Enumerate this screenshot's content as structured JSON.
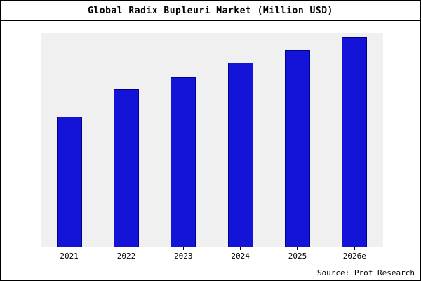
{
  "chart_data": {
    "type": "bar",
    "title": "Global Radix Bupleuri Market (Million USD)",
    "categories": [
      "2021",
      "2022",
      "2023",
      "2024",
      "2025",
      "2026e"
    ],
    "values": [
      62,
      75,
      81,
      88,
      94,
      100
    ],
    "ylim": [
      0,
      102
    ],
    "xlabel": "",
    "ylabel": "",
    "grid": false,
    "legend": false,
    "bar_color": "#1414d9",
    "bar_edge_color": "#00008b",
    "plot_background": "#f0f0f0",
    "source_note": "Source: Prof Research"
  }
}
